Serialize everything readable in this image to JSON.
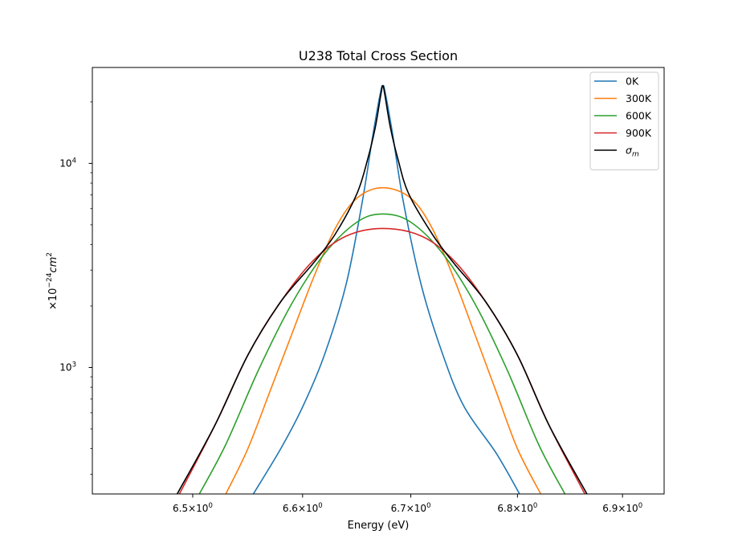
{
  "chart_data": {
    "type": "line",
    "title": "U238 Total Cross Section",
    "xlabel": "Energy (eV)",
    "ylabel_parts": {
      "prefix": "×10",
      "exp": "−24",
      "unit": "cm",
      "unit_exp": "2"
    },
    "xscale": "log",
    "yscale": "log",
    "xlim": [
      6.41,
      6.94
    ],
    "ylim": [
      240,
      29500
    ],
    "x_ticks": [
      {
        "value": 6.5,
        "base": "6.5",
        "exp": "0"
      },
      {
        "value": 6.6,
        "base": "6.6",
        "exp": "0"
      },
      {
        "value": 6.7,
        "base": "6.7",
        "exp": "0"
      },
      {
        "value": 6.8,
        "base": "6.8",
        "exp": "0"
      },
      {
        "value": 6.9,
        "base": "6.9",
        "exp": "0"
      }
    ],
    "y_ticks": [
      {
        "value": 1000,
        "base": "10",
        "exp": "3"
      },
      {
        "value": 10000,
        "base": "10",
        "exp": "4"
      }
    ],
    "grid": false,
    "legend_position": "top-right",
    "series": [
      {
        "name": "0K",
        "color": "#1f77b4",
        "x": [
          6.555,
          6.58,
          6.6,
          6.62,
          6.64,
          6.655,
          6.665,
          6.672,
          6.674,
          6.676,
          6.683,
          6.693,
          6.71,
          6.73,
          6.75,
          6.78,
          6.802
        ],
        "y": [
          240,
          400,
          640,
          1150,
          2550,
          6500,
          14000,
          22500,
          24000,
          22500,
          14000,
          6500,
          2500,
          1150,
          640,
          380,
          240
        ]
      },
      {
        "name": "300K",
        "color": "#ff7f0e",
        "x": [
          6.53,
          6.55,
          6.57,
          6.59,
          6.61,
          6.63,
          6.65,
          6.674,
          6.7,
          6.72,
          6.74,
          6.76,
          6.78,
          6.8,
          6.822
        ],
        "y": [
          240,
          400,
          760,
          1450,
          2750,
          4800,
          6750,
          7600,
          6750,
          4800,
          2750,
          1450,
          760,
          400,
          240
        ]
      },
      {
        "name": "600K",
        "color": "#2ca02c",
        "x": [
          6.506,
          6.53,
          6.56,
          6.59,
          6.62,
          6.65,
          6.674,
          6.7,
          6.73,
          6.76,
          6.79,
          6.82,
          6.845
        ],
        "y": [
          240,
          420,
          980,
          2050,
          3600,
          5150,
          5650,
          5150,
          3600,
          2050,
          980,
          420,
          240
        ]
      },
      {
        "name": "900K",
        "color": "#d62728",
        "x": [
          6.488,
          6.52,
          6.55,
          6.58,
          6.61,
          6.64,
          6.674,
          6.71,
          6.74,
          6.77,
          6.8,
          6.83,
          6.864
        ],
        "y": [
          240,
          520,
          1150,
          2100,
          3350,
          4400,
          4800,
          4400,
          3350,
          2100,
          1150,
          520,
          240
        ]
      },
      {
        "name": "σm",
        "name_base": "σ",
        "name_sub": "m",
        "color": "#000000",
        "x": [
          6.486,
          6.52,
          6.55,
          6.58,
          6.61,
          6.63,
          6.65,
          6.66,
          6.667,
          6.672,
          6.674,
          6.676,
          6.681,
          6.688,
          6.698,
          6.72,
          6.74,
          6.77,
          6.8,
          6.83,
          6.866
        ],
        "y": [
          240,
          520,
          1150,
          2100,
          3250,
          4500,
          7100,
          10500,
          15000,
          21500,
          24000,
          21500,
          15000,
          10500,
          7100,
          4500,
          3250,
          2100,
          1150,
          520,
          240
        ]
      }
    ]
  }
}
